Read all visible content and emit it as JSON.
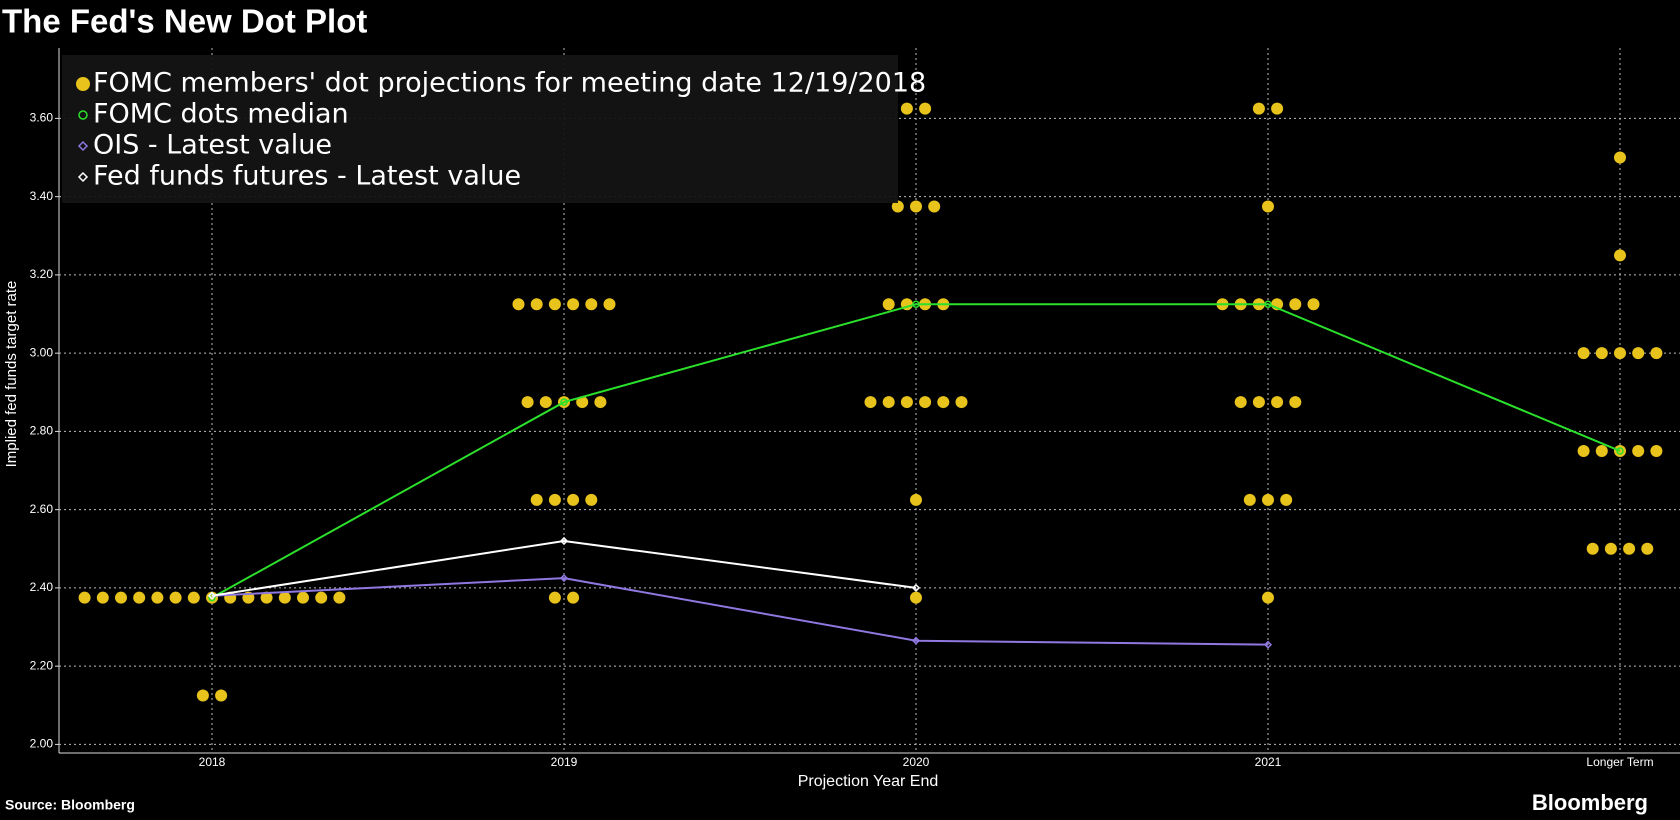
{
  "title": "The Fed's New Dot Plot",
  "source": "Source: Bloomberg",
  "brand": "Bloomberg",
  "chart_data": {
    "type": "dot-plot",
    "y_label": "Implied fed funds target rate",
    "x_label": "Projection Year End",
    "categories": [
      "2018",
      "2019",
      "2020",
      "2021",
      "Longer Term"
    ],
    "ylim": [
      1.978,
      3.78
    ],
    "yticks": [
      {
        "value": 2.0,
        "label": "2.00"
      },
      {
        "value": 2.2,
        "label": "2.20"
      },
      {
        "value": 2.4,
        "label": "2.40"
      },
      {
        "value": 2.6,
        "label": "2.60"
      },
      {
        "value": 2.8,
        "label": "2.80"
      },
      {
        "value": 3.0,
        "label": "3.00"
      },
      {
        "value": 3.2,
        "label": "3.20"
      },
      {
        "value": 3.4,
        "label": "3.40"
      },
      {
        "value": 3.6,
        "label": "3.60"
      }
    ],
    "grid": true,
    "legend": "top-left",
    "series": [
      {
        "name": "FOMC members' dot projections for meeting date 12/19/2018",
        "color": "#e8c31c",
        "marker": "dot",
        "values": [
          [
            2.375,
            2.375,
            2.375,
            2.375,
            2.375,
            2.375,
            2.375,
            2.375,
            2.375,
            2.375,
            2.375,
            2.375,
            2.375,
            2.375,
            2.375,
            2.125,
            2.125
          ],
          [
            3.125,
            3.125,
            3.125,
            3.125,
            3.125,
            3.125,
            2.875,
            2.875,
            2.875,
            2.875,
            2.875,
            2.625,
            2.625,
            2.625,
            2.625,
            2.375,
            2.375
          ],
          [
            3.625,
            3.625,
            3.375,
            3.375,
            3.375,
            3.125,
            3.125,
            3.125,
            3.125,
            2.875,
            2.875,
            2.875,
            2.875,
            2.875,
            2.875,
            2.625,
            2.375
          ],
          [
            3.625,
            3.625,
            3.375,
            3.125,
            3.125,
            3.125,
            3.125,
            3.125,
            3.125,
            2.875,
            2.875,
            2.875,
            2.875,
            2.625,
            2.625,
            2.625,
            2.375
          ],
          [
            3.5,
            3.25,
            3.0,
            3.0,
            3.0,
            3.0,
            3.0,
            2.75,
            2.75,
            2.75,
            2.75,
            2.75,
            2.5,
            2.5,
            2.5,
            2.5
          ]
        ]
      },
      {
        "name": "FOMC dots median",
        "color": "#2be02b",
        "marker": "circle",
        "values": [
          2.375,
          2.875,
          3.125,
          3.125,
          2.75
        ]
      },
      {
        "name": "OIS - Latest value",
        "color": "#8f78e0",
        "marker": "diamond",
        "values": [
          2.38,
          2.425,
          2.265,
          2.255,
          null
        ]
      },
      {
        "name": "Fed funds futures - Latest value",
        "color": "#ffffff",
        "marker": "diamond",
        "values": [
          2.38,
          2.52,
          2.4,
          null,
          null
        ]
      }
    ]
  }
}
